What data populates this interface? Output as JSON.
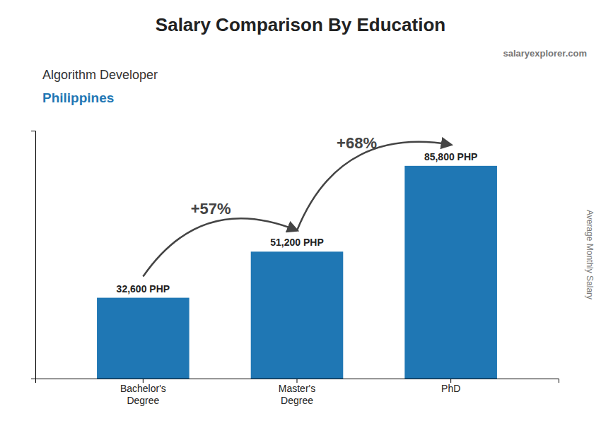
{
  "chart_data": {
    "type": "bar",
    "title": "Salary Comparison By Education",
    "subtitle": "Algorithm Developer",
    "country": "Philippines",
    "source": "salaryexplorer.com",
    "ylabel": "Average Monthly Salary",
    "categories": [
      "Bachelor's\nDegree",
      "Master's\nDegree",
      "PhD"
    ],
    "values": [
      32600,
      51200,
      85800
    ],
    "value_labels": [
      "32,600 PHP",
      "51,200 PHP",
      "85,800 PHP"
    ],
    "annotations": [
      "+57%",
      "+68%"
    ],
    "ylim": [
      0,
      100000
    ],
    "tick_labels": "x",
    "grid": false
  }
}
